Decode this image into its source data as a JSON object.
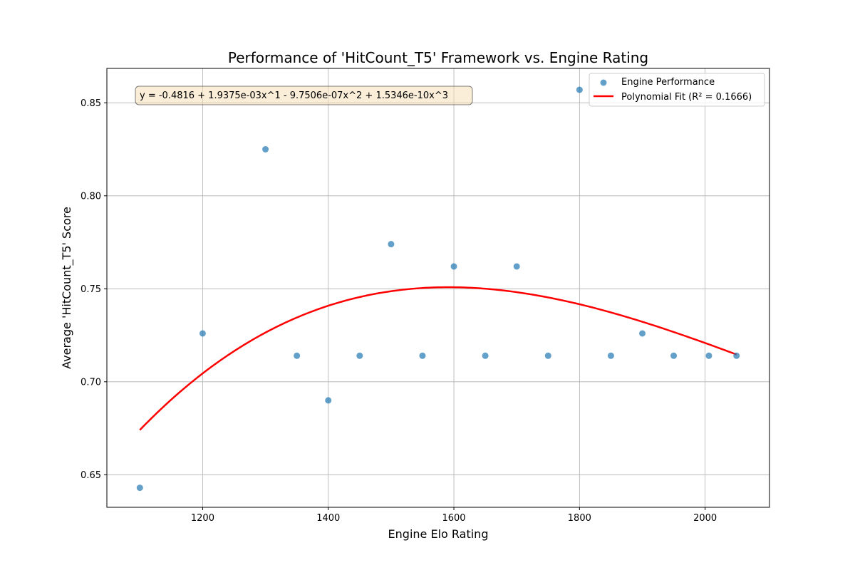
{
  "chart_data": {
    "type": "scatter",
    "title": "Performance of 'HitCount_T5' Framework vs. Engine Rating",
    "xlabel": "Engine Elo Rating",
    "ylabel": "Average 'HitCount_T5' Score",
    "xlim": [
      1047.5,
      2102.5
    ],
    "ylim": [
      0.6325,
      0.8685
    ],
    "xticks": [
      1200,
      1400,
      1600,
      1800,
      2000
    ],
    "yticks": [
      0.65,
      0.7,
      0.75,
      0.8,
      0.85
    ],
    "ytick_labels": [
      "0.65",
      "0.70",
      "0.75",
      "0.80",
      "0.85"
    ],
    "grid": true,
    "legend_position": "top-right",
    "series": [
      {
        "name": "Engine Performance",
        "kind": "scatter",
        "color": "#1f77b4",
        "x": [
          1100,
          1200,
          1300,
          1350,
          1400,
          1450,
          1500,
          1550,
          1600,
          1650,
          1700,
          1750,
          1800,
          1850,
          1900,
          1950,
          2006,
          2050
        ],
        "y": [
          0.643,
          0.726,
          0.825,
          0.714,
          0.69,
          0.714,
          0.774,
          0.714,
          0.762,
          0.714,
          0.762,
          0.714,
          0.857,
          0.714,
          0.726,
          0.714,
          0.714,
          0.714
        ]
      },
      {
        "name": "Polynomial Fit (R² = 0.1666)",
        "kind": "line",
        "color": "#ff0000",
        "coefficients": [
          -0.4816,
          0.0019375,
          -9.7506e-07,
          1.5346e-10
        ],
        "x_range": [
          1100,
          2050
        ]
      }
    ],
    "annotation": "y = -0.4816 + 1.9375e-03x^1 - 9.7506e-07x^2 + 1.5346e-10x^3"
  }
}
